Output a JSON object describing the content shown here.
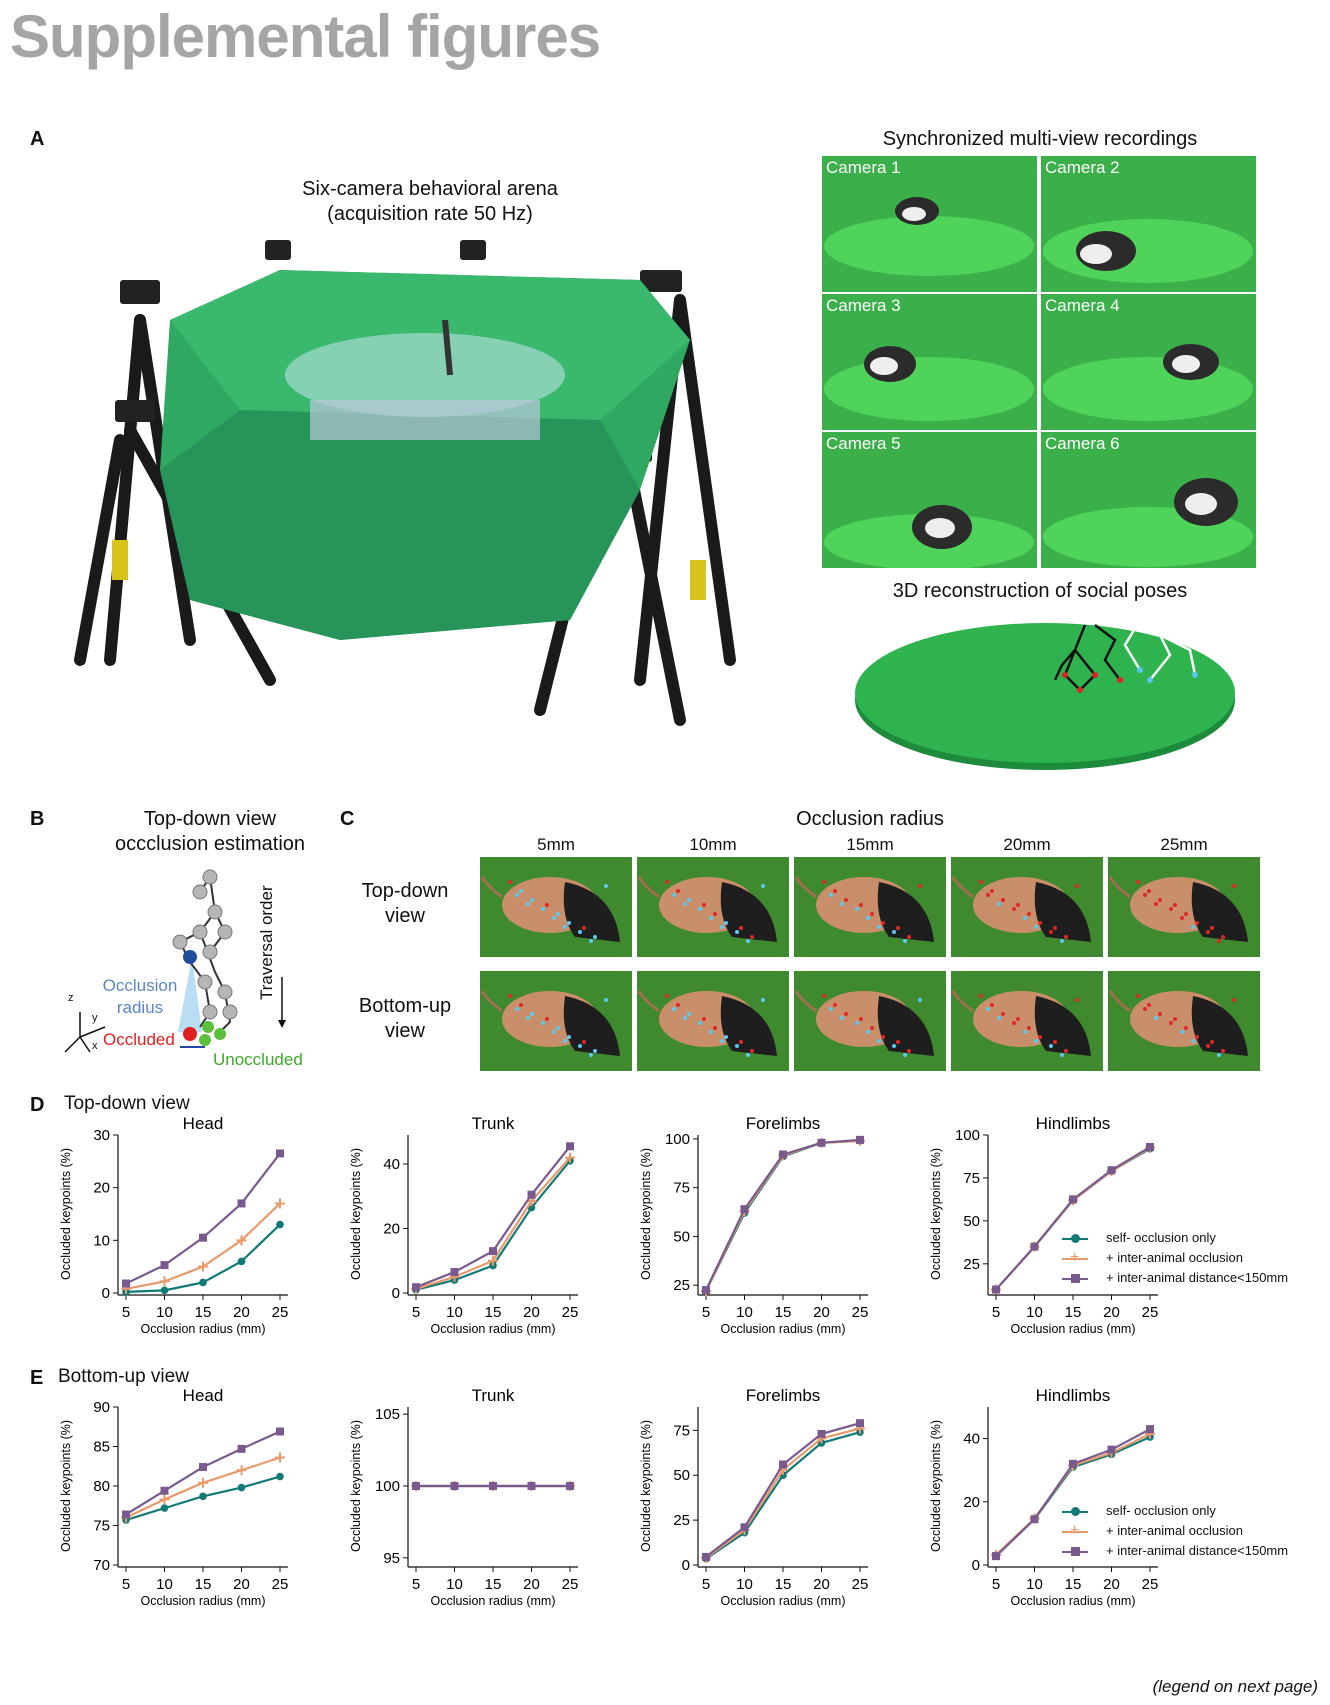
{
  "header": {
    "title": "Supplemental figures"
  },
  "panelA": {
    "letter": "A",
    "arena_title_line1": "Six-camera behavioral arena",
    "arena_title_line2": "(acquisition rate 50 Hz)",
    "recordings_title": "Synchronized multi-view recordings",
    "cameras": [
      "Camera 1",
      "Camera 2",
      "Camera 3",
      "Camera 4",
      "Camera 5",
      "Camera 6"
    ],
    "reconstruction_title": "3D reconstruction of social poses"
  },
  "panelB": {
    "letter": "B",
    "title_line1": "Top-down view",
    "title_line2": "occclusion estimation",
    "traversal_label": "Traversal order",
    "occlusion_radius_line1": "Occlusion",
    "occlusion_radius_line2": "radius",
    "occluded_label": "Occluded",
    "unoccluded_label": "Unoccluded",
    "axis_z": "z",
    "axis_y": "y",
    "axis_x": "x"
  },
  "panelC": {
    "letter": "C",
    "title": "Occlusion radius",
    "columns": [
      "5mm",
      "10mm",
      "15mm",
      "20mm",
      "25mm"
    ],
    "row1_line1": "Top-down",
    "row1_line2": "view",
    "row2_line1": "Bottom-up",
    "row2_line2": "view"
  },
  "panelD": {
    "letter": "D",
    "title": "Top-down view"
  },
  "panelE": {
    "letter": "E",
    "title": "Bottom-up view"
  },
  "legend": {
    "self": "self- occlusion only",
    "inter": "+ inter-animal occlusion",
    "dist": "+ inter-animal distance<150mm"
  },
  "colors": {
    "self": "#127a76",
    "inter": "#e89a6c",
    "dist": "#7a5a8e",
    "arena_green": "#2fa862",
    "header_gray": "#a5a5a5"
  },
  "chart_data": [
    {
      "type": "line",
      "panel": "D",
      "title": "Head",
      "xlabel": "Occlusion radius (mm)",
      "ylabel": "Occluded keypoints (%)",
      "x": [
        5,
        10,
        15,
        20,
        25
      ],
      "ylim": [
        0,
        30
      ],
      "yticks": [
        0,
        10,
        20,
        30
      ],
      "series": [
        {
          "name": "self- occlusion only",
          "values": [
            0.2,
            0.5,
            2,
            6,
            13
          ]
        },
        {
          "name": "+ inter-animal occlusion",
          "values": [
            0.8,
            2.2,
            5,
            10,
            17
          ]
        },
        {
          "name": "+ inter-animal distance<150mm",
          "values": [
            1.8,
            5.3,
            10.5,
            17,
            26.5
          ]
        }
      ]
    },
    {
      "type": "line",
      "panel": "D",
      "title": "Trunk",
      "xlabel": "Occlusion radius (mm)",
      "ylabel": "Occluded keypoints (%)",
      "x": [
        5,
        10,
        15,
        20,
        25
      ],
      "ylim": [
        0,
        49
      ],
      "yticks": [
        0,
        20,
        40
      ],
      "series": [
        {
          "name": "self- occlusion only",
          "values": [
            1,
            4,
            8.5,
            26.5,
            41
          ]
        },
        {
          "name": "+ inter-animal occlusion",
          "values": [
            1.3,
            5,
            10,
            28.5,
            42
          ]
        },
        {
          "name": "+ inter-animal distance<150mm",
          "values": [
            1.8,
            6.5,
            13,
            30.5,
            45.5
          ]
        }
      ]
    },
    {
      "type": "line",
      "panel": "D",
      "title": "Forelimbs",
      "xlabel": "Occlusion radius (mm)",
      "ylabel": "Occluded keypoints (%)",
      "x": [
        5,
        10,
        15,
        20,
        25
      ],
      "ylim": [
        21,
        102
      ],
      "yticks": [
        25,
        50,
        75,
        100
      ],
      "series": [
        {
          "name": "self- occlusion only",
          "values": [
            22,
            62,
            91,
            98,
            99
          ]
        },
        {
          "name": "+ inter-animal occlusion",
          "values": [
            22,
            63,
            91.5,
            98,
            99
          ]
        },
        {
          "name": "+ inter-animal distance<150mm",
          "values": [
            22.5,
            64,
            92,
            98,
            99.5
          ]
        }
      ]
    },
    {
      "type": "line",
      "panel": "D",
      "title": "Hindlimbs",
      "xlabel": "Occlusion radius (mm)",
      "ylabel": "Occluded keypoints (%)",
      "x": [
        5,
        10,
        15,
        20,
        25
      ],
      "ylim": [
        8,
        100
      ],
      "yticks": [
        25,
        50,
        75,
        100
      ],
      "series": [
        {
          "name": "self- occlusion only",
          "values": [
            10,
            35,
            62,
            79,
            92
          ]
        },
        {
          "name": "+ inter-animal occlusion",
          "values": [
            10,
            35,
            62,
            79,
            92.5
          ]
        },
        {
          "name": "+ inter-animal distance<150mm",
          "values": [
            10,
            35,
            62.5,
            79.5,
            93
          ]
        }
      ]
    },
    {
      "type": "line",
      "panel": "E",
      "title": "Head",
      "xlabel": "Occlusion radius (mm)",
      "ylabel": "Occluded keypoints (%)",
      "x": [
        5,
        10,
        15,
        20,
        25
      ],
      "ylim": [
        70,
        90
      ],
      "yticks": [
        70,
        75,
        80,
        85,
        90
      ],
      "series": [
        {
          "name": "self- occlusion only",
          "values": [
            75.7,
            77.2,
            78.7,
            79.8,
            81.2
          ]
        },
        {
          "name": "+ inter-animal occlusion",
          "values": [
            76,
            78.3,
            80.4,
            82,
            83.6
          ]
        },
        {
          "name": "+ inter-animal distance<150mm",
          "values": [
            76.4,
            79.4,
            82.4,
            84.7,
            86.9
          ]
        }
      ]
    },
    {
      "type": "line",
      "panel": "E",
      "title": "Trunk",
      "xlabel": "Occlusion radius (mm)",
      "ylabel": "Occluded keypoints (%)",
      "x": [
        5,
        10,
        15,
        20,
        25
      ],
      "ylim": [
        94.5,
        105.5
      ],
      "yticks": [
        95,
        100,
        105
      ],
      "series": [
        {
          "name": "self- occlusion only",
          "values": [
            100,
            100,
            100,
            100,
            100
          ]
        },
        {
          "name": "+ inter-animal occlusion",
          "values": [
            100,
            100,
            100,
            100,
            100
          ]
        },
        {
          "name": "+ inter-animal distance<150mm",
          "values": [
            100,
            100,
            100,
            100,
            100
          ]
        }
      ]
    },
    {
      "type": "line",
      "panel": "E",
      "title": "Forelimbs",
      "xlabel": "Occlusion radius (mm)",
      "ylabel": "Occluded keypoints (%)",
      "x": [
        5,
        10,
        15,
        20,
        25
      ],
      "ylim": [
        0,
        88
      ],
      "yticks": [
        0,
        25,
        50,
        75
      ],
      "series": [
        {
          "name": "self- occlusion only",
          "values": [
            3.5,
            18,
            50,
            68,
            74
          ]
        },
        {
          "name": "+ inter-animal occlusion",
          "values": [
            4,
            19.5,
            53,
            70.5,
            76
          ]
        },
        {
          "name": "+ inter-animal distance<150mm",
          "values": [
            4.5,
            21,
            56,
            73,
            79
          ]
        }
      ]
    },
    {
      "type": "line",
      "panel": "E",
      "title": "Hindlimbs",
      "xlabel": "Occlusion radius (mm)",
      "ylabel": "Occluded keypoints (%)",
      "x": [
        5,
        10,
        15,
        20,
        25
      ],
      "ylim": [
        0,
        50
      ],
      "yticks": [
        0,
        20,
        40
      ],
      "series": [
        {
          "name": "self- occlusion only",
          "values": [
            3,
            14.5,
            31,
            35,
            40.5
          ]
        },
        {
          "name": "+ inter-animal occlusion",
          "values": [
            3.2,
            14.7,
            31.5,
            35.5,
            41.5
          ]
        },
        {
          "name": "+ inter-animal distance<150mm",
          "values": [
            2.8,
            14.5,
            32,
            36.5,
            43
          ]
        }
      ]
    }
  ],
  "footer": {
    "note": "(legend on next page)"
  }
}
